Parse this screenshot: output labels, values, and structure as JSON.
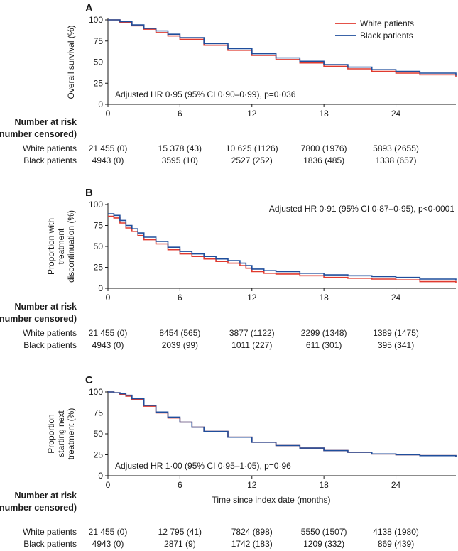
{
  "chart_data": {
    "type": "line",
    "xlabel": "Time since index date (months)",
    "xticks": [
      0,
      6,
      12,
      18,
      24
    ],
    "xlim": [
      0,
      29
    ],
    "yticks": [
      0,
      25,
      50,
      75,
      100
    ],
    "ylim": [
      0,
      100
    ],
    "legend": {
      "placement": "top-right",
      "entries": [
        {
          "name": "White patients",
          "color": "#e03a2f"
        },
        {
          "name": "Black patients",
          "color": "#1f4e9c"
        }
      ]
    },
    "risk_table": {
      "heading1": "Number at risk",
      "heading2": "(number censored)"
    },
    "panels": [
      {
        "letter": "A",
        "ylabel": [
          "Overall survival (%)"
        ],
        "annotation": "Adjusted HR 0·95 (95% CI 0·90–0·99), p=0·036",
        "annotation_pos": "bottom-left",
        "show_legend": true,
        "show_xlabel": false,
        "series": [
          {
            "name": "White patients",
            "color": "#e03a2f",
            "x": [
              0,
              1,
              2,
              3,
              4,
              5,
              6,
              8,
              10,
              12,
              14,
              16,
              18,
              20,
              22,
              24,
              26,
              29
            ],
            "y": [
              100,
              97,
              93,
              89,
              85,
              81,
              77,
              70,
              64,
              58,
              53,
              49,
              45,
              42,
              39,
              37,
              35,
              32
            ]
          },
          {
            "name": "Black patients",
            "color": "#1f4e9c",
            "x": [
              0,
              1,
              2,
              3,
              4,
              5,
              6,
              8,
              10,
              12,
              14,
              16,
              18,
              20,
              22,
              24,
              26,
              29
            ],
            "y": [
              100,
              98,
              94,
              90,
              87,
              83,
              79,
              72,
              66,
              60,
              55,
              51,
              47,
              44,
              41,
              39,
              37,
              34
            ]
          }
        ],
        "risk": [
          {
            "group": "White patients",
            "values": [
              "21 455 (0)",
              "15 378 (43)",
              "10 625 (1126)",
              "7800 (1976)",
              "5893 (2655)"
            ]
          },
          {
            "group": "Black patients",
            "values": [
              "4943 (0)",
              "3595 (10)",
              "2527 (252)",
              "1836 (485)",
              "1338 (657)"
            ]
          }
        ]
      },
      {
        "letter": "B",
        "ylabel": [
          "Proportion with",
          "treatment",
          "discontinuation (%)"
        ],
        "annotation": "Adjusted HR 0·91 (95% CI 0·87–0·95), p<0·0001",
        "annotation_pos": "top-right",
        "show_legend": false,
        "show_xlabel": false,
        "series": [
          {
            "name": "White patients",
            "color": "#e03a2f",
            "x": [
              0,
              0.5,
              1,
              1.5,
              2,
              2.5,
              3,
              4,
              5,
              6,
              7,
              8,
              9,
              10,
              11,
              11.5,
              12,
              13,
              14,
              16,
              18,
              20,
              22,
              24,
              26,
              29
            ],
            "y": [
              86,
              84,
              78,
              72,
              68,
              63,
              58,
              53,
              46,
              41,
              38,
              35,
              32,
              30,
              27,
              24,
              20,
              18,
              17,
              15,
              13,
              12,
              11,
              10,
              8,
              6
            ]
          },
          {
            "name": "Black patients",
            "color": "#1f4e9c",
            "x": [
              0,
              0.5,
              1,
              1.5,
              2,
              2.5,
              3,
              4,
              5,
              6,
              7,
              8,
              9,
              10,
              11,
              11.5,
              12,
              13,
              14,
              16,
              18,
              20,
              22,
              24,
              26,
              29
            ],
            "y": [
              89,
              87,
              81,
              75,
              71,
              66,
              61,
              56,
              49,
              44,
              41,
              38,
              35,
              33,
              30,
              27,
              23,
              21,
              20,
              18,
              16,
              15,
              14,
              13,
              11,
              9
            ]
          }
        ],
        "risk": [
          {
            "group": "White patients",
            "values": [
              "21 455 (0)",
              "8454 (565)",
              "3877 (1122)",
              "2299 (1348)",
              "1389 (1475)"
            ]
          },
          {
            "group": "Black patients",
            "values": [
              "4943 (0)",
              "2039 (99)",
              "1011 (227)",
              "611 (301)",
              "395 (341)"
            ]
          }
        ]
      },
      {
        "letter": "C",
        "ylabel": [
          "Proportion",
          "starting next",
          "treatment (%)"
        ],
        "annotation": "Adjusted HR 1·00 (95% CI 0·95–1·05), p=0·96",
        "annotation_pos": "bottom-left",
        "show_legend": false,
        "show_xlabel": true,
        "series": [
          {
            "name": "White patients",
            "color": "#e03a2f",
            "x": [
              0,
              0.5,
              1,
              1.5,
              2,
              3,
              4,
              5,
              6,
              7,
              8,
              10,
              12,
              14,
              16,
              18,
              20,
              22,
              24,
              26,
              29
            ],
            "y": [
              100,
              99,
              97,
              95,
              91,
              83,
              75,
              69,
              64,
              58,
              53,
              46,
              40,
              36,
              33,
              30,
              28,
              26,
              25,
              24,
              22
            ]
          },
          {
            "name": "Black patients",
            "color": "#1f4e9c",
            "x": [
              0,
              0.5,
              1,
              1.5,
              2,
              3,
              4,
              5,
              6,
              7,
              8,
              10,
              12,
              14,
              16,
              18,
              20,
              22,
              24,
              26,
              29
            ],
            "y": [
              100,
              99,
              98,
              96,
              92,
              84,
              76,
              70,
              64,
              58,
              53,
              46,
              40,
              36,
              33,
              30,
              28,
              26,
              25,
              24,
              22
            ]
          }
        ],
        "risk": [
          {
            "group": "White patients",
            "values": [
              "21 455 (0)",
              "12 795 (41)",
              "7824 (898)",
              "5550 (1507)",
              "4138 (1980)"
            ]
          },
          {
            "group": "Black patients",
            "values": [
              "4943 (0)",
              "2871 (9)",
              "1742 (183)",
              "1209 (332)",
              "869 (439)"
            ]
          }
        ]
      }
    ]
  }
}
